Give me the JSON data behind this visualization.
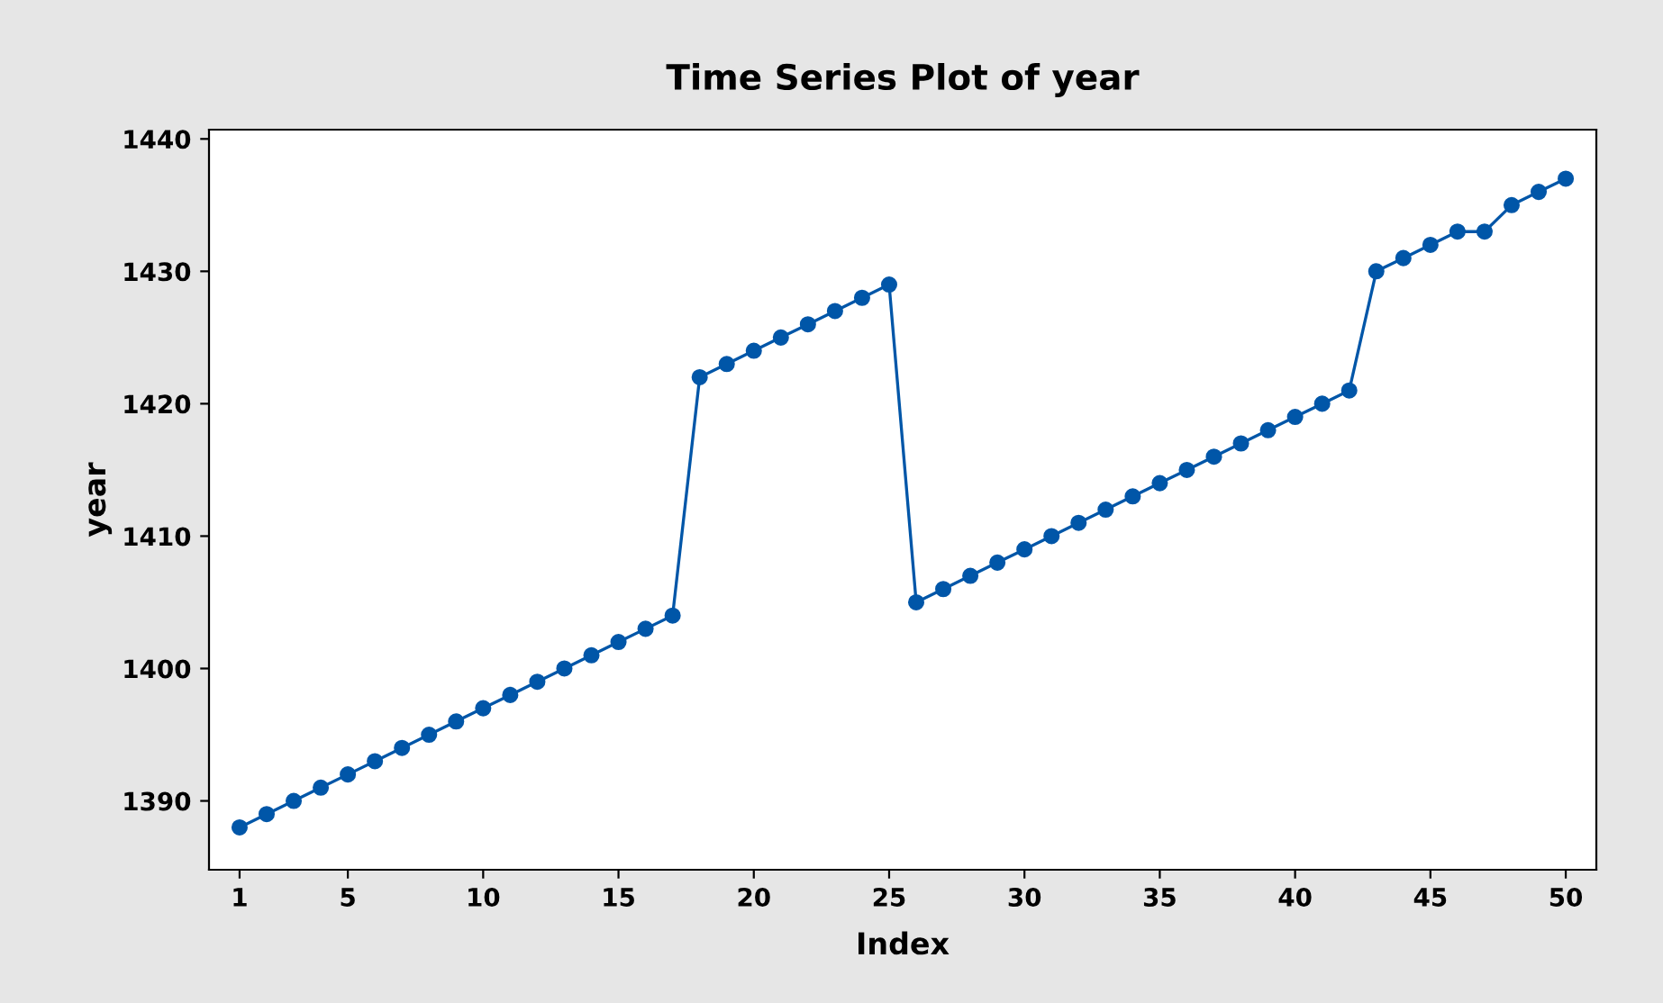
{
  "chart_data": {
    "type": "line",
    "title": "Time Series Plot of year",
    "xlabel": "Index",
    "ylabel": "year",
    "x": [
      1,
      2,
      3,
      4,
      5,
      6,
      7,
      8,
      9,
      10,
      11,
      12,
      13,
      14,
      15,
      16,
      17,
      18,
      19,
      20,
      21,
      22,
      23,
      24,
      25,
      26,
      27,
      28,
      29,
      30,
      31,
      32,
      33,
      34,
      35,
      36,
      37,
      38,
      39,
      40,
      41,
      42,
      43,
      44,
      45,
      46,
      47,
      48,
      49,
      50
    ],
    "series": [
      {
        "color": "#0056a8",
        "values": [
          1388,
          1389,
          1390,
          1391,
          1392,
          1393,
          1394,
          1395,
          1396,
          1397,
          1398,
          1399,
          1400,
          1401,
          1402,
          1403,
          1404,
          1422,
          1423,
          1424,
          1425,
          1426,
          1427,
          1428,
          1429,
          1405,
          1406,
          1407,
          1408,
          1409,
          1410,
          1411,
          1412,
          1413,
          1414,
          1415,
          1416,
          1417,
          1418,
          1419,
          1420,
          1421,
          1430,
          1431,
          1432,
          1433,
          1433,
          1435,
          1436,
          1437
        ]
      }
    ],
    "xlim": [
      -0.13,
      51.13
    ],
    "ylim": [
      1384.8,
      1440.7
    ],
    "xticks": [
      1,
      5,
      10,
      15,
      20,
      25,
      30,
      35,
      40,
      45,
      50
    ],
    "yticks": [
      1390,
      1400,
      1410,
      1420,
      1430,
      1440
    ],
    "marker": "circle",
    "line_style": "solid",
    "grid": false,
    "legend": false
  }
}
